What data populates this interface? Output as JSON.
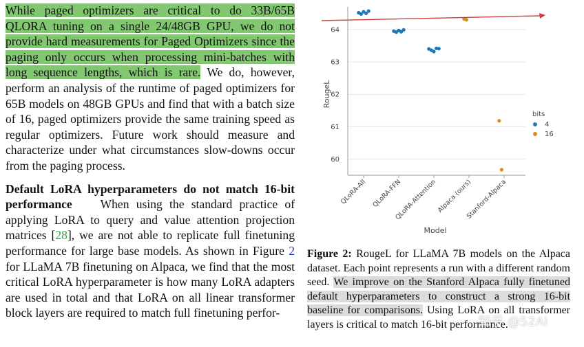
{
  "left_column": {
    "para1_highlighted": "While paged optimizers are critical to do 33B/65B QLORA tuning on a single 24/48GB GPU, we do not provide hard measurements for Paged Optimizers since the paging only occurs when processing mini-batches with long sequence lengths, which is rare.",
    "para1_rest": " We do, however, perform an analysis of the runtime of paged optimizers for 65B models on 48GB GPUs and find that with a batch size of 16, paged optimizers provide the same training speed as regular optimizers. Future work should measure and characterize under what circumstances slow-downs occur from the paging process.",
    "section_heading": "Default LoRA hyperparameters do not match 16-bit performance",
    "para2_a": "When using the standard practice of applying LoRA to query and value attention projection matrices [",
    "cite_28": "28",
    "para2_b": "], we are not able to replicate full finetuning performance for large base models. As shown in Figure ",
    "fig_ref": "2",
    "para2_c": " for LLaMA 7B finetuning on Alpaca, we find that the most critical LoRA hyperparameter is how many LoRA adapters are used in total and that LoRA on all linear transformer block layers are required to match full finetuning perfor-"
  },
  "caption": {
    "label": "Figure 2:",
    "text_plain": " RougeL for LLaMA 7B models on the Alpaca dataset. Each point represents a run with a different random seed. ",
    "text_highlighted": "We improve on the Stanford Alpaca fully finetuned default hyperparameters to construct a strong 16-bit baseline for comparisons.",
    "text_end": " Using LoRA on all transformer layers is critical to match 16-bit performance."
  },
  "watermark": "知乎 @52AI",
  "chart_data": {
    "type": "scatter",
    "title": "",
    "xlabel": "Model",
    "ylabel": "RougeL",
    "categories": [
      "QLoRA-All",
      "QLoRA-FFN",
      "QLoRA-Attention",
      "Alpaca (ours)",
      "Stanford-Alpaca"
    ],
    "y_ticks": [
      "60",
      "61",
      "62",
      "63",
      "64"
    ],
    "ylim": [
      59.5,
      64.7
    ],
    "legend": {
      "title": "bits",
      "placement": "right",
      "entries": [
        "4",
        "16"
      ]
    },
    "series": [
      {
        "name": "4",
        "color": "#1f77b4",
        "points": [
          {
            "x": "QLoRA-All",
            "y": 64.52
          },
          {
            "x": "QLoRA-All",
            "y": 64.48
          },
          {
            "x": "QLoRA-All",
            "y": 64.55
          },
          {
            "x": "QLoRA-All",
            "y": 64.5
          },
          {
            "x": "QLoRA-All",
            "y": 64.57
          },
          {
            "x": "QLoRA-FFN",
            "y": 63.95
          },
          {
            "x": "QLoRA-FFN",
            "y": 63.92
          },
          {
            "x": "QLoRA-FFN",
            "y": 63.97
          },
          {
            "x": "QLoRA-FFN",
            "y": 63.93
          },
          {
            "x": "QLoRA-FFN",
            "y": 63.99
          },
          {
            "x": "QLoRA-Attention",
            "y": 63.4
          },
          {
            "x": "QLoRA-Attention",
            "y": 63.36
          },
          {
            "x": "QLoRA-Attention",
            "y": 63.32
          },
          {
            "x": "QLoRA-Attention",
            "y": 63.42
          },
          {
            "x": "QLoRA-Attention",
            "y": 63.41
          }
        ]
      },
      {
        "name": "16",
        "color": "#dd8a18",
        "points": [
          {
            "x": "Alpaca (ours)",
            "y": 64.33
          },
          {
            "x": "Alpaca (ours)",
            "y": 64.3
          },
          {
            "x": "Stanford-Alpaca",
            "y": 61.18
          },
          {
            "x": "Stanford-Alpaca",
            "y": 59.67
          }
        ]
      }
    ]
  }
}
